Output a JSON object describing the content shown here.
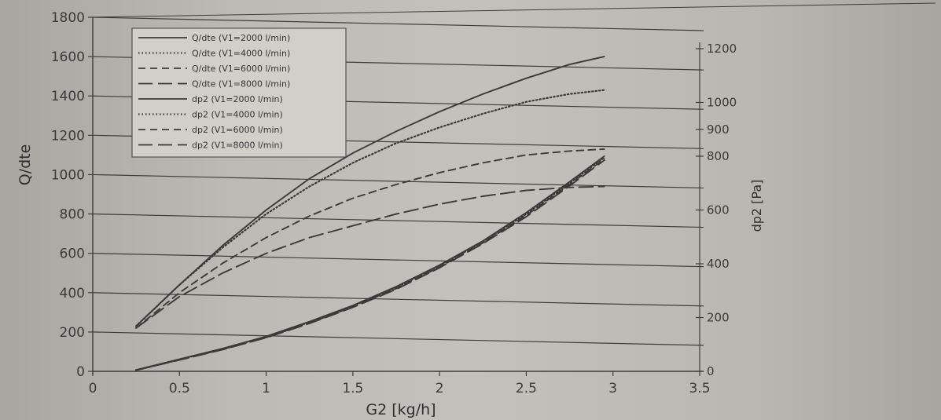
{
  "chart_data": {
    "type": "line",
    "xlabel": "G2 [kg/h]",
    "ylabel": "Q/dte",
    "y2label": "dp2 [Pa]",
    "xlim": [
      0,
      3.5
    ],
    "ylim": [
      0,
      1800
    ],
    "y2lim": [
      0,
      1200
    ],
    "xticks": [
      "0",
      "0.5",
      "1",
      "1.5",
      "2",
      "2.5",
      "3",
      "3.5"
    ],
    "yticks": [
      "0",
      "200",
      "400",
      "600",
      "800",
      "1000",
      "1200",
      "1400",
      "1600",
      "1800"
    ],
    "y2ticks": [
      "0",
      "200",
      "400",
      "600",
      "800",
      "900",
      "1000",
      "1200"
    ],
    "grid": "horizontal",
    "legend_position": "top-left",
    "x": [
      0.25,
      0.5,
      0.75,
      1.0,
      1.25,
      1.5,
      1.75,
      2.0,
      2.25,
      2.5,
      2.75,
      2.95
    ],
    "series": [
      {
        "name": "Q/dte (V1=2000 l/min)",
        "axis": "left",
        "style": "solid",
        "values": [
          230,
          440,
          640,
          820,
          980,
          1110,
          1220,
          1320,
          1410,
          1490,
          1560,
          1600
        ]
      },
      {
        "name": "Q/dte (V1=4000 l/min)",
        "axis": "left",
        "style": "dotted",
        "values": [
          230,
          440,
          630,
          800,
          940,
          1060,
          1160,
          1240,
          1310,
          1370,
          1410,
          1430
        ]
      },
      {
        "name": "Q/dte (V1=6000 l/min)",
        "axis": "left",
        "style": "dashed",
        "values": [
          220,
          400,
          550,
          680,
          790,
          880,
          950,
          1010,
          1060,
          1100,
          1120,
          1130
        ]
      },
      {
        "name": "Q/dte (V1=8000 l/min)",
        "axis": "left",
        "style": "longdash",
        "values": [
          220,
          380,
          500,
          600,
          680,
          740,
          800,
          850,
          890,
          920,
          935,
          940
        ]
      },
      {
        "name": "dp2 (V1=2000 l/min)",
        "axis": "right",
        "style": "solid",
        "values": [
          5,
          45,
          85,
          130,
          185,
          245,
          315,
          395,
          485,
          590,
          705,
          800
        ]
      },
      {
        "name": "dp2 (V1=4000 l/min)",
        "axis": "right",
        "style": "dotted",
        "values": [
          5,
          44,
          84,
          128,
          183,
          243,
          312,
          392,
          482,
          585,
          700,
          795
        ]
      },
      {
        "name": "dp2 (V1=6000 l/min)",
        "axis": "right",
        "style": "dashed",
        "values": [
          4,
          43,
          82,
          126,
          180,
          240,
          308,
          388,
          478,
          580,
          695,
          790
        ]
      },
      {
        "name": "dp2 (V1=8000 l/min)",
        "axis": "right",
        "style": "longdash",
        "values": [
          4,
          42,
          81,
          125,
          178,
          238,
          305,
          385,
          475,
          575,
          690,
          785
        ]
      }
    ]
  },
  "colors": {
    "line": "#3a3a3a",
    "grid": "#3c3c3c",
    "legend_bg": "#d2cfcb"
  }
}
